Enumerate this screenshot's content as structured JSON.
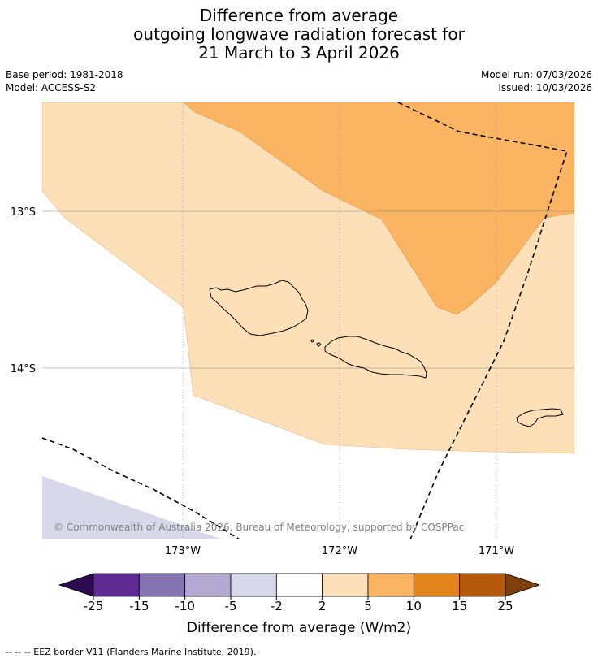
{
  "title": {
    "line1": "Difference from average",
    "line2": "outgoing longwave radiation forecast for",
    "line3": "21 March to 3 April 2026"
  },
  "meta": {
    "base_period": "Base period: 1981-2018",
    "model": "Model: ACCESS-S2",
    "model_run": "Model run: 07/03/2026",
    "issued": "Issued: 10/03/2026"
  },
  "map": {
    "latitude_labels": [
      "13°S",
      "14°S"
    ],
    "longitude_labels": [
      "173°W",
      "172°W",
      "171°W"
    ],
    "copyright": "© Commonwealth of Australia 2026, Bureau of Meteorology, supported by COSPPac"
  },
  "colorbar": {
    "ticks": [
      "-25",
      "-15",
      "-10",
      "-5",
      "-2",
      "2",
      "5",
      "10",
      "15",
      "25"
    ],
    "colors": [
      "#5c2a91",
      "#8673b2",
      "#b2a8d2",
      "#d8d8ea",
      "#ffffff",
      "#fde0b8",
      "#fbb562",
      "#e3841c",
      "#b45a0c"
    ],
    "under_color": "#2e0a52",
    "over_color": "#7e3f0a",
    "label": "Difference from average (W/m2)"
  },
  "legend": {
    "eez_note": "--  --  -- EEZ border V11 (Flanders Marine Institute, 2019)."
  }
}
